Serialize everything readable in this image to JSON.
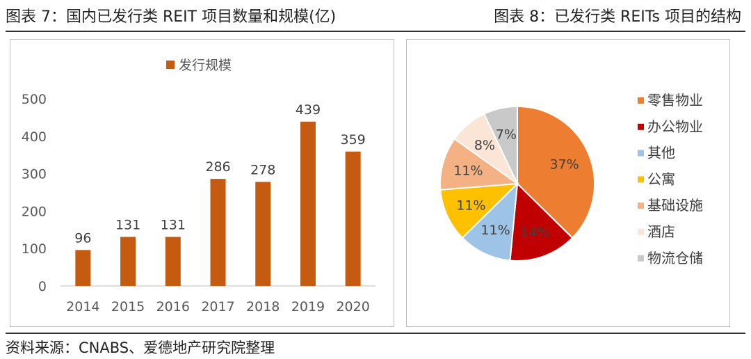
{
  "header": {
    "left_title": "图表 7：国内已发行类 REIT 项目数量和规模(亿)",
    "right_title": "图表 8：已发行类 REITs 项目的结构"
  },
  "source": "资料来源：CNABS、爱德地产研究院整理",
  "chart_data": [
    {
      "type": "bar",
      "title": "",
      "categories": [
        "2014",
        "2015",
        "2016",
        "2017",
        "2018",
        "2019",
        "2020"
      ],
      "series": [
        {
          "name": "发行规模",
          "values": [
            96,
            131,
            131,
            286,
            278,
            439,
            359
          ],
          "color": "#c55a11"
        }
      ],
      "data_labels": [
        "96",
        "131",
        "131",
        "286",
        "278",
        "439",
        "359"
      ],
      "y_ticks": [
        "0",
        "100",
        "200",
        "300",
        "400",
        "500"
      ],
      "ylim": [
        0,
        500
      ],
      "grid": false,
      "legend_position": "top"
    },
    {
      "type": "pie",
      "title": "",
      "slices": [
        {
          "name": "零售物业",
          "value": 37,
          "label": "37%",
          "color": "#ed7d31"
        },
        {
          "name": "办公物业",
          "value": 14,
          "label": "14%",
          "color": "#c00000"
        },
        {
          "name": "其他",
          "value": 11,
          "label": "11%",
          "color": "#9dc3e6"
        },
        {
          "name": "公寓",
          "value": 11,
          "label": "11%",
          "color": "#ffc000"
        },
        {
          "name": "基础设施",
          "value": 11,
          "label": "11%",
          "color": "#f4b183"
        },
        {
          "name": "酒店",
          "value": 8,
          "label": "8%",
          "color": "#fbe5d6"
        },
        {
          "name": "物流仓储",
          "value": 7,
          "label": "7%",
          "color": "#c9c9c9"
        }
      ],
      "legend_position": "right"
    }
  ]
}
